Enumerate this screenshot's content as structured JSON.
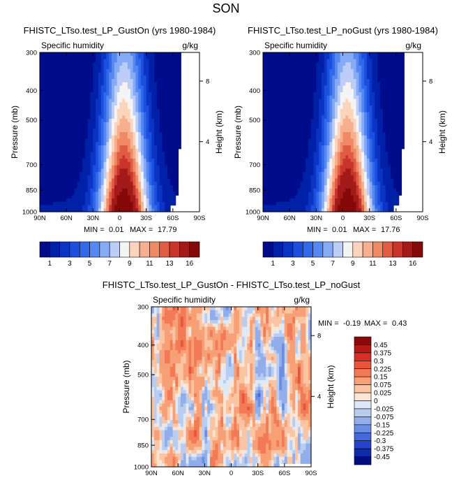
{
  "figure": {
    "title": "SON"
  },
  "chart_data": [
    {
      "type": "heatmap",
      "title": "FHISTC_LTso.test_LP_GustOn (yrs 1980-1984)",
      "variable": "Specific humidity",
      "units": "g/kg",
      "xlabel": "",
      "ylabel": "Pressure (mb)",
      "ylabel_right": "Height (km)",
      "x_ticks": [
        "90N",
        "60N",
        "30N",
        "0",
        "30S",
        "60S",
        "90S"
      ],
      "y_ticks": [
        "300",
        "400",
        "500",
        "700",
        "850",
        "1000"
      ],
      "y_ticks_right": [
        "8",
        "4"
      ],
      "xlim": [
        90,
        -90
      ],
      "ylim": [
        1000,
        300
      ],
      "min_label": "MIN =",
      "min": "0.01",
      "max_label": "MAX =",
      "max": "17.79",
      "colorbar_labels": [
        "1",
        "3",
        "5",
        "7",
        "9",
        "11",
        "13",
        "16"
      ],
      "levels": [
        1,
        2,
        3,
        4,
        5,
        6,
        7,
        8,
        9,
        10,
        11,
        12,
        13,
        14,
        16
      ]
    },
    {
      "type": "heatmap",
      "title": "FHISTC_LTso.test_LP_noGust (yrs 1980-1984)",
      "variable": "Specific humidity",
      "units": "g/kg",
      "xlabel": "",
      "ylabel": "Pressure (mb)",
      "ylabel_right": "Height (km)",
      "x_ticks": [
        "90N",
        "60N",
        "30N",
        "0",
        "30S",
        "60S",
        "90S"
      ],
      "y_ticks": [
        "300",
        "400",
        "500",
        "700",
        "850",
        "1000"
      ],
      "y_ticks_right": [
        "8",
        "4"
      ],
      "xlim": [
        90,
        -90
      ],
      "ylim": [
        1000,
        300
      ],
      "min_label": "MIN =",
      "min": "0.01",
      "max_label": "MAX =",
      "max": "17.76",
      "colorbar_labels": [
        "1",
        "3",
        "5",
        "7",
        "9",
        "11",
        "13",
        "16"
      ],
      "levels": [
        1,
        2,
        3,
        4,
        5,
        6,
        7,
        8,
        9,
        10,
        11,
        12,
        13,
        14,
        16
      ]
    },
    {
      "type": "heatmap",
      "title": "FHISTC_LTso.test_LP_GustOn - FHISTC_LTso.test_LP_noGust",
      "variable": "Specific humidity",
      "units": "g/kg",
      "xlabel": "",
      "ylabel": "Pressure (mb)",
      "ylabel_right": "Height (km)",
      "x_ticks": [
        "90N",
        "60N",
        "30N",
        "0",
        "30S",
        "60S",
        "90S"
      ],
      "y_ticks": [
        "300",
        "400",
        "500",
        "700",
        "850",
        "1000"
      ],
      "y_ticks_right": [
        "8",
        "4"
      ],
      "xlim": [
        90,
        -90
      ],
      "ylim": [
        1000,
        300
      ],
      "min_label": "MIN =",
      "min": "-0.19",
      "max_label": "MAX =",
      "max": "0.43",
      "colorbar_labels": [
        "0.45",
        "0.375",
        "0.3",
        "0.225",
        "0.15",
        "0.075",
        "0.025",
        "0",
        "-0.025",
        "-0.075",
        "-0.15",
        "-0.225",
        "-0.3",
        "-0.375",
        "-0.45"
      ]
    }
  ],
  "colors": {
    "sequential": [
      "#000c8a",
      "#0120a8",
      "#0a35c4",
      "#1b4fde",
      "#3169ea",
      "#5588f0",
      "#86aaf4",
      "#bccef8",
      "#f4f4f4",
      "#fbd4bd",
      "#f7b08f",
      "#f08a66",
      "#e05c42",
      "#c9352b",
      "#a31a1a",
      "#850909"
    ],
    "diverging": [
      "#8a0909",
      "#b51818",
      "#d63026",
      "#e9543a",
      "#f27a56",
      "#f7a077",
      "#fbc4a2",
      "#fde5d4",
      "#dde8f8",
      "#b9cdf1",
      "#91aeea",
      "#6b8ee2",
      "#4569db",
      "#2546cc",
      "#0f2aaa",
      "#010d80"
    ]
  }
}
